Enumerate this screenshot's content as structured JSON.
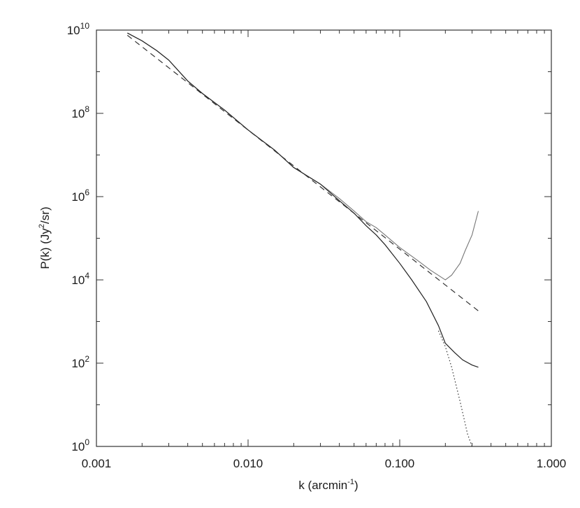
{
  "chart_data": {
    "type": "line",
    "xlabel": "k (arcmin",
    "xlabel_sup": "-1",
    "xlabel_end": ")",
    "ylabel_pre": "P(k) (Jy",
    "ylabel_sup": "2",
    "ylabel_post": "/sr)",
    "x_scale": "log",
    "y_scale": "log",
    "xlim": [
      0.001,
      1.0
    ],
    "ylim": [
      1,
      10000000000.0
    ],
    "grid": false,
    "x_ticks": [
      {
        "value": 0.001,
        "label": "0.001"
      },
      {
        "value": 0.01,
        "label": "0.010"
      },
      {
        "value": 0.1,
        "label": "0.100"
      },
      {
        "value": 1.0,
        "label": "1.000"
      }
    ],
    "y_ticks": [
      {
        "value": 1,
        "base": "10",
        "exp": "0"
      },
      {
        "value": 100,
        "base": "10",
        "exp": "2"
      },
      {
        "value": 10000,
        "base": "10",
        "exp": "4"
      },
      {
        "value": 1000000,
        "base": "10",
        "exp": "6"
      },
      {
        "value": 100000000,
        "base": "10",
        "exp": "8"
      },
      {
        "value": 10000000000,
        "base": "10",
        "exp": "10"
      }
    ],
    "series": [
      {
        "style": "solid-light",
        "color": "#777777",
        "x": [
          0.0016,
          0.002,
          0.0025,
          0.003,
          0.004,
          0.005,
          0.007,
          0.01,
          0.015,
          0.02,
          0.03,
          0.04,
          0.05,
          0.06,
          0.07,
          0.08,
          0.1,
          0.13,
          0.16,
          0.2,
          0.22,
          0.25,
          0.27,
          0.3,
          0.33
        ],
        "y": [
          8500000000.0,
          5500000000.0,
          3200000000.0,
          1900000000.0,
          600000000.0,
          300000000.0,
          120000000.0,
          40000000.0,
          13000000.0,
          5000000.0,
          2000000.0,
          900000.0,
          450000.0,
          250000.0,
          180000.0,
          120000.0,
          60000.0,
          30000.0,
          17000.0,
          10000.0,
          13000.0,
          25000.0,
          50000.0,
          120000.0,
          450000.0
        ]
      },
      {
        "style": "solid-dark",
        "color": "#222222",
        "x": [
          0.0016,
          0.002,
          0.0025,
          0.003,
          0.004,
          0.005,
          0.007,
          0.01,
          0.015,
          0.02,
          0.03,
          0.04,
          0.05,
          0.06,
          0.07,
          0.08,
          0.1,
          0.12,
          0.15,
          0.18,
          0.2,
          0.23,
          0.26,
          0.3,
          0.33
        ],
        "y": [
          8500000000.0,
          5500000000.0,
          3200000000.0,
          1900000000.0,
          600000000.0,
          300000000.0,
          120000000.0,
          40000000.0,
          13000000.0,
          5000000.0,
          2000000.0,
          800000.0,
          400000.0,
          200000.0,
          120000.0,
          70000.0,
          25000.0,
          10000.0,
          3000.0,
          800,
          300,
          180,
          120,
          90,
          80
        ]
      },
      {
        "style": "dashed",
        "color": "#333333",
        "x": [
          0.0016,
          0.33
        ],
        "y": [
          7500000000.0,
          1800.0
        ]
      },
      {
        "style": "dotted",
        "color": "#333333",
        "x": [
          0.18,
          0.2,
          0.22,
          0.25,
          0.28,
          0.3
        ],
        "y": [
          600,
          250,
          80,
          12,
          2,
          0.8
        ]
      }
    ]
  }
}
